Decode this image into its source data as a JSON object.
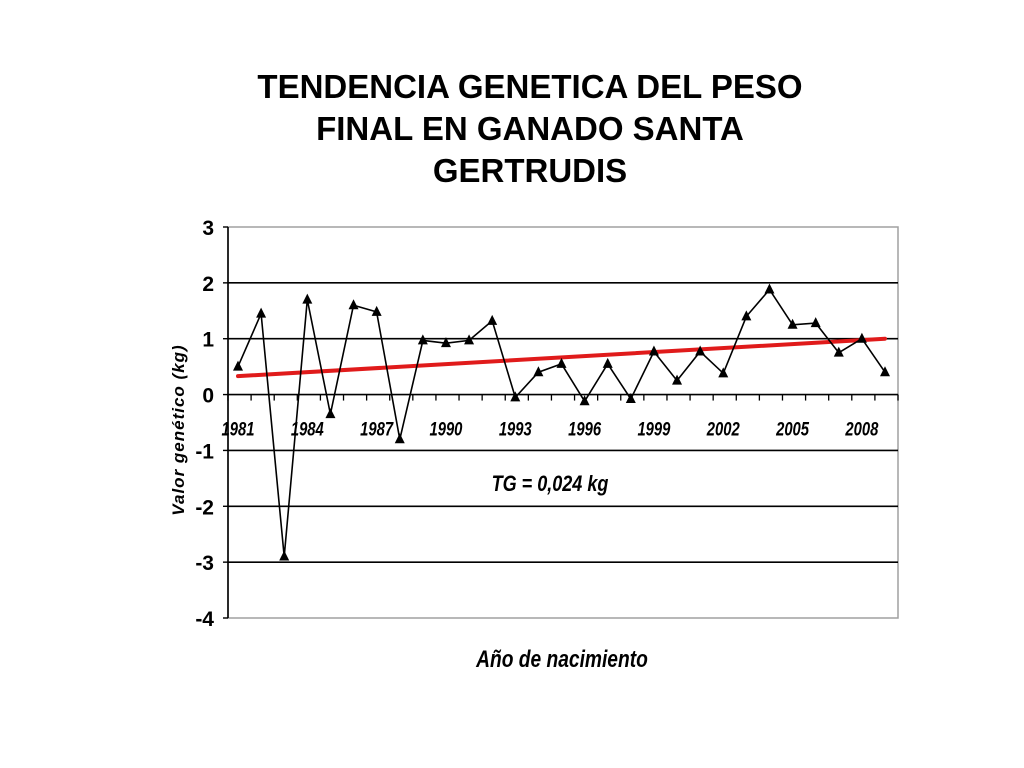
{
  "title_lines": [
    "TENDENCIA GENETICA DEL PESO",
    "FINAL EN GANADO SANTA",
    "GERTRUDIS"
  ],
  "chart_data": {
    "type": "line",
    "ylabel": "Valor genético (kg)",
    "xlabel": "Año de nacimiento",
    "annotation": "TG = 0,024 kg",
    "ylim": [
      -4,
      3
    ],
    "yticks": [
      3,
      2,
      1,
      0,
      -1,
      -2,
      -3,
      -4
    ],
    "xtick_labels": [
      "1981",
      "1984",
      "1987",
      "1990",
      "1993",
      "1996",
      "1999",
      "2002",
      "2005",
      "2008"
    ],
    "grid": "horizontal",
    "x": [
      1981,
      1982,
      1983,
      1984,
      1985,
      1986,
      1987,
      1988,
      1989,
      1990,
      1991,
      1992,
      1993,
      1994,
      1995,
      1996,
      1997,
      1998,
      1999,
      2000,
      2001,
      2002,
      2003,
      2004,
      2005,
      2006,
      2007,
      2008,
      2009
    ],
    "series": [
      {
        "values": [
          0.5,
          1.45,
          -2.9,
          1.7,
          -0.35,
          1.6,
          1.48,
          -0.8,
          0.97,
          0.92,
          0.97,
          1.32,
          -0.05,
          0.4,
          0.55,
          -0.12,
          0.55,
          -0.08,
          0.77,
          0.25,
          0.77,
          0.38,
          1.4,
          1.88,
          1.25,
          1.28,
          0.75,
          1.0,
          0.4
        ],
        "color": "#000000",
        "marker": "triangle"
      },
      {
        "values": [
          0.33,
          0.354,
          0.378,
          0.402,
          0.426,
          0.45,
          0.474,
          0.498,
          0.522,
          0.546,
          0.57,
          0.594,
          0.618,
          0.642,
          0.666,
          0.69,
          0.714,
          0.738,
          0.762,
          0.786,
          0.81,
          0.834,
          0.858,
          0.882,
          0.906,
          0.93,
          0.954,
          0.978,
          1.0
        ],
        "color": "#e01b1b",
        "style": "trend"
      }
    ],
    "colors": {
      "axis": "#000000",
      "grid": "#000000",
      "frame": "#a0a0a0",
      "data": "#000000",
      "trend": "#e01b1b"
    }
  }
}
